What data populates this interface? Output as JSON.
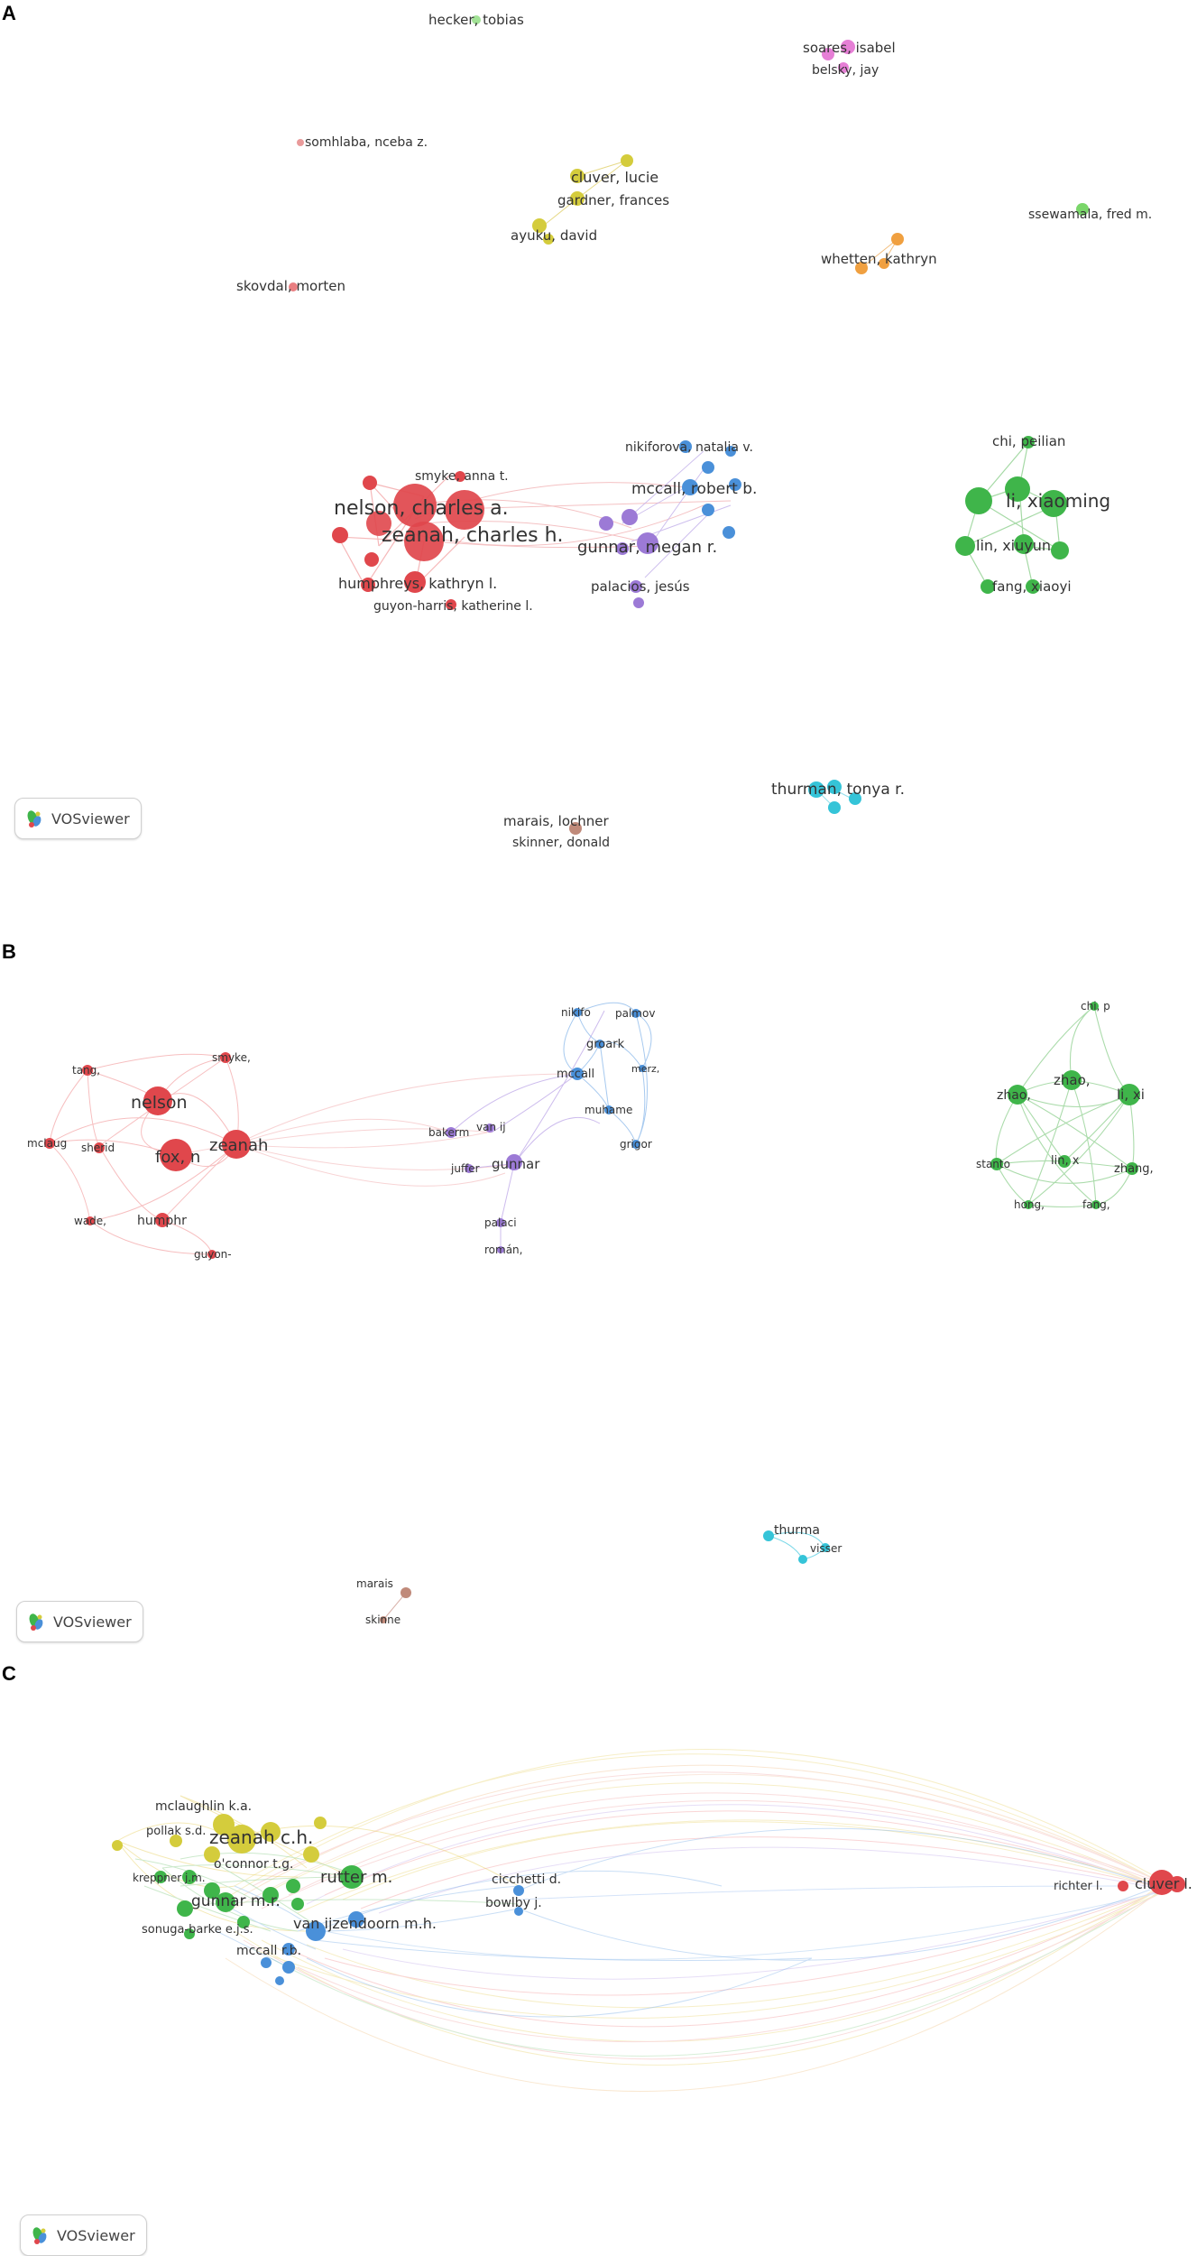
{
  "branding": {
    "tool_name": "VOSviewer"
  },
  "colors": {
    "red": "#e0474c",
    "green": "#3fb54a",
    "blue": "#4a90d9",
    "purple": "#9c7ad6",
    "yellow": "#d4cc3c",
    "pink": "#e67fd6",
    "orange": "#f0a040",
    "cyan": "#35c4d8",
    "brown": "#c08a7a",
    "lightgreen": "#7ad66a"
  },
  "panels": [
    {
      "letter": "A",
      "clusters": [
        {
          "color": "red",
          "nodes": [
            {
              "label": "nelson, charles a.",
              "size": "xl"
            },
            {
              "label": "zeanah, charles h.",
              "size": "xl"
            },
            {
              "label": "smyke, anna t.",
              "size": "s"
            },
            {
              "label": "humphreys, kathryn l.",
              "size": "m"
            },
            {
              "label": "guyon-harris, katherine l.",
              "size": "s"
            }
          ]
        },
        {
          "color": "purple",
          "nodes": [
            {
              "label": "gunnar, megan r.",
              "size": "m"
            },
            {
              "label": "palacios, jesús",
              "size": "s"
            }
          ]
        },
        {
          "color": "blue",
          "nodes": [
            {
              "label": "nikiforova, natalia v.",
              "size": "s"
            },
            {
              "label": "mccall, robert b.",
              "size": "m"
            }
          ]
        },
        {
          "color": "green",
          "nodes": [
            {
              "label": "chi, peilian",
              "size": "s"
            },
            {
              "label": "li, xiaoming",
              "size": "l"
            },
            {
              "label": "lin, xiuyun",
              "size": "m"
            },
            {
              "label": "fang, xiaoyi",
              "size": "m"
            }
          ]
        },
        {
          "color": "yellow",
          "nodes": [
            {
              "label": "cluver, lucie",
              "size": "m"
            },
            {
              "label": "gardner, frances",
              "size": "m"
            },
            {
              "label": "ayuku, david",
              "size": "m"
            }
          ]
        },
        {
          "color": "pink",
          "nodes": [
            {
              "label": "soares, isabel",
              "size": "s"
            },
            {
              "label": "belsky, jay",
              "size": "s"
            }
          ]
        },
        {
          "color": "orange",
          "nodes": [
            {
              "label": "whetten, kathryn",
              "size": "s"
            }
          ]
        },
        {
          "color": "cyan",
          "nodes": [
            {
              "label": "thurman, tonya r.",
              "size": "m"
            }
          ]
        },
        {
          "color": "brown",
          "nodes": [
            {
              "label": "marais, lochner",
              "size": "s"
            },
            {
              "label": "skinner, donald",
              "size": "s"
            }
          ]
        },
        {
          "color": "lightgreen",
          "nodes": [
            {
              "label": "hecker, tobias",
              "size": "s"
            },
            {
              "label": "ssewamala, fred m.",
              "size": "s"
            }
          ]
        },
        {
          "color": "red",
          "nodes": [
            {
              "label": "somhlaba, nceba z.",
              "size": "s"
            },
            {
              "label": "skovdal, morten",
              "size": "s"
            }
          ]
        }
      ]
    },
    {
      "letter": "B",
      "labels": {
        "red": [
          "nelson",
          "fox, n",
          "zeanah",
          "smyke,",
          "tang,",
          "mclaug",
          "sherid",
          "humphr",
          "wade,",
          "guyon-"
        ],
        "purple": [
          "gunnar",
          "bakerm",
          "van ij",
          "juffer",
          "palaci",
          "román,"
        ],
        "blue": [
          "nikifo",
          "palmov",
          "groark",
          "mccall",
          "merz,",
          "muhame",
          "grigor"
        ],
        "green": [
          "chi, p",
          "zhao,",
          "zhao,",
          "li, xi",
          "stanto",
          "lin, x",
          "zhang,",
          "hong,",
          "fang,"
        ],
        "cyan": [
          "thurma",
          "visser"
        ],
        "brown": [
          "marais",
          "skinne"
        ]
      }
    },
    {
      "letter": "C",
      "labels": {
        "yellow": [
          "mclaughlin k.a.",
          "pollak s.d.",
          "zeanah c.h."
        ],
        "green": [
          "o'connor t.g.",
          "kreppner j.m.",
          "gunnar m.r.",
          "rutter m.",
          "sonuga-barke e.j.s."
        ],
        "blue": [
          "van ijzendoorn m.h.",
          "mccall r.b.",
          "cicchetti d.",
          "bowlby j."
        ],
        "red": [
          "richter l.",
          "cluver l."
        ]
      }
    }
  ]
}
